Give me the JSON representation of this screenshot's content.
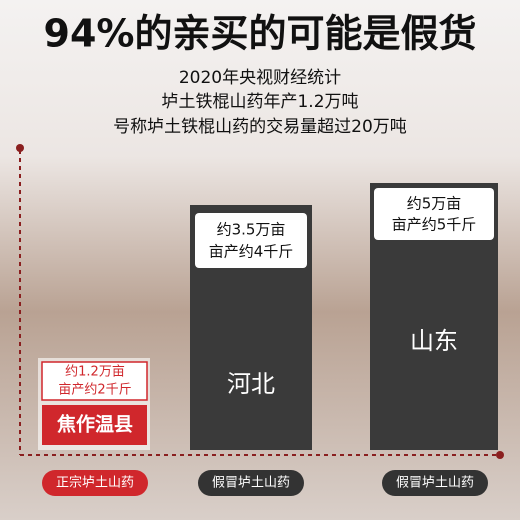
{
  "header": {
    "title": "94%的亲买的可能是假货",
    "lines": [
      "2020年央视财经统计",
      "垆土铁棍山药年产1.2万吨",
      "号称垆土铁棍山药的交易量超过20万吨"
    ]
  },
  "columns": [
    {
      "info": [
        "约1.2万亩",
        "亩产约2千斤"
      ],
      "region": "焦作温县",
      "label": "正宗垆土山药"
    },
    {
      "info": [
        "约3.5万亩",
        "亩产约4千斤"
      ],
      "region": "河北",
      "label": "假冒垆土山药"
    },
    {
      "info": [
        "约5万亩",
        "亩产约5千斤"
      ],
      "region": "山东",
      "label": "假冒垆土山药"
    }
  ]
}
